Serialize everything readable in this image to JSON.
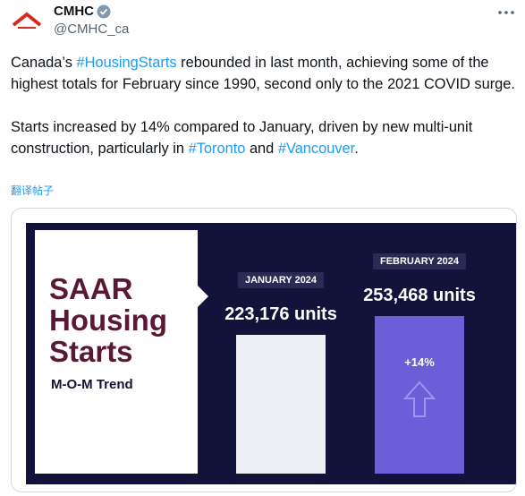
{
  "header": {
    "name": "CMHC",
    "handle": "@CMHC_ca"
  },
  "tweet": {
    "paragraphs": [
      [
        "Canada’s ",
        {
          "hashtag": "#HousingStarts"
        },
        " rebounded in last month, achieving some of the highest totals for February since 1990, second only to the 2021 COVID surge."
      ],
      [
        "Starts increased by 14% compared to January, driven by new multi-unit construction, particularly in ",
        {
          "hashtag": "#Toronto"
        },
        " and ",
        {
          "hashtag": "#Vancouver"
        },
        "."
      ]
    ],
    "translate": "翻译帖子"
  },
  "chart_data": {
    "type": "bar",
    "title": "SAAR Housing Starts",
    "subtitle": "M-O-M Trend",
    "categories": [
      "JANUARY 2024",
      "FEBRUARY 2024"
    ],
    "values": [
      223176,
      253468
    ],
    "value_labels": [
      "223,176 units",
      "253,468 units"
    ],
    "colors": [
      "#eceef4",
      "#6a5fd6"
    ],
    "annotation": "+14%"
  }
}
